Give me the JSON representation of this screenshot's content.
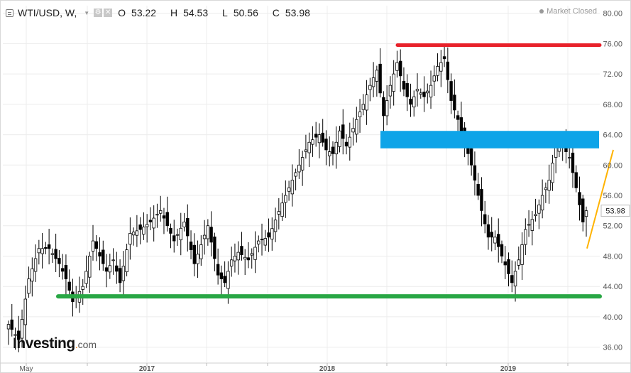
{
  "header": {
    "symbol": "WTI/USD, W,",
    "open_label": "O",
    "open": "53.22",
    "high_label": "H",
    "high": "54.53",
    "low_label": "L",
    "low": "50.56",
    "close_label": "C",
    "close": "53.98"
  },
  "status": {
    "text": "Market Closed"
  },
  "brand": {
    "main": "Investing",
    "dot": ".",
    "tld": "com"
  },
  "colors": {
    "bull": "#ffffff",
    "bear": "#000000",
    "resistance": "#e8212a",
    "support": "#29a745",
    "zone": "#0ea4e8",
    "trend": "#ffb300",
    "grid": "#ececec"
  },
  "chart_data": {
    "type": "candlestick",
    "title": "WTI/USD, W,",
    "ylim": [
      34,
      81
    ],
    "y_ticks": [
      "80.00",
      "76.00",
      "72.00",
      "68.00",
      "64.00",
      "60.00",
      "56.00",
      "52.00",
      "48.00",
      "44.00",
      "40.00",
      "36.00"
    ],
    "x_ticks": [
      "May",
      "2017",
      "2018",
      "2019"
    ],
    "last_price": "53.98",
    "grid": true,
    "annotations": {
      "resistance_line": {
        "y": 75.8
      },
      "support_line": {
        "y": 42.7
      },
      "zone": {
        "y_low": 62.2,
        "y_high": 64.5
      },
      "trend_line": {
        "from_y": 49.0,
        "to_y": 62.0
      }
    },
    "close_waypoints": [
      [
        0,
        39.0
      ],
      [
        3,
        37.0
      ],
      [
        6,
        45.0
      ],
      [
        9,
        49.0
      ],
      [
        12,
        49.0
      ],
      [
        15,
        47.0
      ],
      [
        17,
        45.0
      ],
      [
        19,
        42.0
      ],
      [
        22,
        44.0
      ],
      [
        25,
        50.0
      ],
      [
        29,
        46.0
      ],
      [
        31,
        47.5
      ],
      [
        33,
        44.5
      ],
      [
        36,
        51.0
      ],
      [
        39,
        51.5
      ],
      [
        42,
        52.5
      ],
      [
        45,
        54.0
      ],
      [
        49,
        50.0
      ],
      [
        52,
        52.5
      ],
      [
        55,
        47.0
      ],
      [
        59,
        52.0
      ],
      [
        62,
        45.5
      ],
      [
        64,
        44.5
      ],
      [
        66,
        47.5
      ],
      [
        68,
        48.5
      ],
      [
        71,
        47.5
      ],
      [
        74,
        50.0
      ],
      [
        77,
        50.5
      ],
      [
        81,
        55.0
      ],
      [
        84,
        58.0
      ],
      [
        87,
        61.0
      ],
      [
        89,
        63.0
      ],
      [
        92,
        64.0
      ],
      [
        94,
        62.0
      ],
      [
        96,
        61.5
      ],
      [
        98,
        64.5
      ],
      [
        100,
        62.5
      ],
      [
        103,
        66.0
      ],
      [
        105,
        68.0
      ],
      [
        107,
        70.5
      ],
      [
        109,
        72.5
      ],
      [
        111,
        66.5
      ],
      [
        113,
        70.5
      ],
      [
        115,
        73.5
      ],
      [
        117,
        70.0
      ],
      [
        119,
        68.0
      ],
      [
        121,
        70.0
      ],
      [
        123,
        69.0
      ],
      [
        125,
        70.5
      ],
      [
        127,
        73.0
      ],
      [
        129,
        74.0
      ],
      [
        131,
        68.5
      ],
      [
        133,
        66.0
      ],
      [
        135,
        63.0
      ],
      [
        137,
        60.0
      ],
      [
        140,
        54.0
      ],
      [
        142,
        50.5
      ],
      [
        144,
        50.5
      ],
      [
        146,
        48.0
      ],
      [
        149,
        44.5
      ],
      [
        151,
        47.5
      ],
      [
        153,
        51.5
      ],
      [
        156,
        53.5
      ],
      [
        158,
        56.0
      ],
      [
        160,
        58.0
      ],
      [
        162,
        62.5
      ],
      [
        164,
        62.5
      ],
      [
        166,
        61.0
      ],
      [
        168,
        57.0
      ],
      [
        170,
        52.5
      ],
      [
        171,
        53.98
      ]
    ]
  }
}
